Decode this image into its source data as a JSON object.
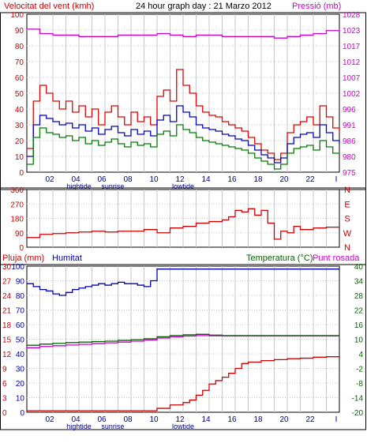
{
  "header": {
    "left_title": "Velocitat del vent (kmh)",
    "center_title": "24 hour graph day : 21 Marzo 2012",
    "right_title": "Pressió (mb)"
  },
  "panel3_header": {
    "rain_label": "Pluja (mm)",
    "humidity_label": "Humitat",
    "temperature_label": "Temperatura (°C)",
    "dewpoint_label": "Punt rosada"
  },
  "x_ticks": [
    "02",
    "04",
    "06",
    "08",
    "10",
    "12",
    "14",
    "16",
    "18",
    "20",
    "22",
    "I"
  ],
  "x_annotations": [
    "hightide",
    "sunrise",
    "lowtide"
  ],
  "colors": {
    "wind_gust": "#e00000",
    "wind_avg": "#0000cc",
    "wind_min": "#007a00",
    "pressure": "#cc00cc",
    "direction": "#cc0000",
    "humidity": "#0000aa",
    "temperature": "#006600",
    "dewpoint": "#cc00cc",
    "rain": "#cc0000"
  },
  "chart_data": [
    {
      "type": "line",
      "xlabel": "",
      "ylabel": "Velocitat del vent (kmh)",
      "y2label": "Pressió (mb)",
      "x_range": [
        0,
        24
      ],
      "ylim": [
        0,
        100
      ],
      "y_ticks": [
        "0",
        "10",
        "20",
        "30",
        "40",
        "50",
        "60",
        "70",
        "80",
        "90",
        "100"
      ],
      "y2lim": [
        975,
        1028
      ],
      "y2_ticks": [
        "975",
        "980",
        "986",
        "991",
        "996",
        "1002",
        "1007",
        "1012",
        "1017",
        "1023",
        "1028"
      ],
      "grid": true,
      "series": [
        {
          "color": "#e00000",
          "x": [
            0,
            0.5,
            1,
            1.5,
            2,
            2.5,
            3,
            3.5,
            4,
            4.5,
            5,
            5.5,
            6,
            6.5,
            7,
            7.5,
            8,
            8.5,
            9,
            9.5,
            10,
            10.5,
            11,
            11.5,
            12,
            12.5,
            13,
            13.5,
            14,
            14.5,
            15,
            15.5,
            16,
            16.5,
            17,
            17.5,
            18,
            18.5,
            19,
            19.5,
            20,
            20.5,
            21,
            21.5,
            22,
            22.5,
            23,
            23.5,
            24
          ],
          "y": [
            15,
            45,
            55,
            50,
            45,
            40,
            45,
            38,
            42,
            35,
            40,
            30,
            38,
            42,
            35,
            30,
            38,
            32,
            35,
            30,
            48,
            52,
            45,
            65,
            55,
            50,
            42,
            38,
            36,
            35,
            32,
            30,
            28,
            26,
            22,
            18,
            14,
            12,
            8,
            12,
            25,
            30,
            32,
            35,
            30,
            42,
            35,
            28,
            25
          ]
        },
        {
          "color": "#0000cc",
          "x": [
            0,
            0.5,
            1,
            1.5,
            2,
            2.5,
            3,
            3.5,
            4,
            4.5,
            5,
            5.5,
            6,
            6.5,
            7,
            7.5,
            8,
            8.5,
            9,
            9.5,
            10,
            10.5,
            11,
            11.5,
            12,
            12.5,
            13,
            13.5,
            14,
            14.5,
            15,
            15.5,
            16,
            16.5,
            17,
            17.5,
            18,
            18.5,
            19,
            19.5,
            20,
            20.5,
            21,
            21.5,
            22,
            22.5,
            23,
            23.5,
            24
          ],
          "y": [
            10,
            30,
            36,
            34,
            32,
            30,
            31,
            28,
            30,
            26,
            28,
            24,
            27,
            29,
            25,
            23,
            27,
            24,
            26,
            23,
            33,
            36,
            32,
            42,
            38,
            35,
            30,
            28,
            27,
            26,
            24,
            23,
            21,
            20,
            17,
            14,
            11,
            9,
            6,
            9,
            18,
            22,
            24,
            25,
            22,
            30,
            25,
            20,
            18
          ]
        },
        {
          "color": "#007a00",
          "x": [
            0,
            0.5,
            1,
            1.5,
            2,
            2.5,
            3,
            3.5,
            4,
            4.5,
            5,
            5.5,
            6,
            6.5,
            7,
            7.5,
            8,
            8.5,
            9,
            9.5,
            10,
            10.5,
            11,
            11.5,
            12,
            12.5,
            13,
            13.5,
            14,
            14.5,
            15,
            15.5,
            16,
            16.5,
            17,
            17.5,
            18,
            18.5,
            19,
            19.5,
            20,
            20.5,
            21,
            21.5,
            22,
            22.5,
            23,
            23.5,
            24
          ],
          "y": [
            5,
            22,
            28,
            25,
            24,
            22,
            23,
            20,
            22,
            18,
            20,
            17,
            19,
            21,
            18,
            16,
            19,
            17,
            18,
            16,
            24,
            26,
            23,
            30,
            27,
            25,
            22,
            20,
            19,
            18,
            17,
            16,
            15,
            14,
            12,
            9,
            7,
            5,
            2,
            5,
            12,
            15,
            16,
            17,
            14,
            20,
            16,
            12,
            11
          ]
        },
        {
          "color": "#cc00cc",
          "axis": "y2",
          "x": [
            0,
            1,
            2,
            3,
            4,
            5,
            6,
            7,
            8,
            9,
            10,
            11,
            12,
            13,
            14,
            15,
            16,
            17,
            18,
            19,
            20,
            21,
            22,
            23,
            24
          ],
          "y": [
            1023,
            1021.5,
            1021,
            1021,
            1020.5,
            1020.5,
            1020.5,
            1021,
            1021,
            1021,
            1021.5,
            1021,
            1020.5,
            1021,
            1021,
            1020.5,
            1020.5,
            1020.5,
            1020.5,
            1020,
            1020.5,
            1021,
            1021.5,
            1022.5,
            1023
          ]
        }
      ]
    },
    {
      "type": "line",
      "ylabel": "",
      "x_range": [
        0,
        24
      ],
      "ylim": [
        0,
        360
      ],
      "y_ticks": [
        "0",
        "90",
        "180",
        "270",
        "360"
      ],
      "y2_ticks": [
        "N",
        "W",
        "S",
        "E",
        "N"
      ],
      "grid": true,
      "series": [
        {
          "color": "#cc0000",
          "x": [
            0,
            1,
            2,
            3,
            4,
            5,
            6,
            7,
            8,
            9,
            10,
            11,
            12,
            13,
            14,
            15,
            15.5,
            16,
            16.5,
            17,
            17.5,
            18,
            18.5,
            19,
            19.5,
            20,
            20.5,
            21,
            22,
            23,
            24
          ],
          "y": [
            60,
            80,
            85,
            90,
            95,
            100,
            95,
            100,
            100,
            110,
            90,
            120,
            130,
            150,
            160,
            170,
            190,
            230,
            220,
            240,
            200,
            230,
            150,
            50,
            100,
            90,
            130,
            110,
            120,
            125,
            130
          ]
        }
      ]
    },
    {
      "type": "line",
      "x_range": [
        0,
        24
      ],
      "ylim_left": [
        0,
        100
      ],
      "left_ticks_rain": [
        "0",
        "3",
        "6",
        "9",
        "12",
        "15",
        "18",
        "21",
        "24",
        "27",
        "30"
      ],
      "left_ticks_humidity": [
        "0",
        "10",
        "20",
        "30",
        "40",
        "50",
        "60",
        "70",
        "80",
        "90",
        "100"
      ],
      "ylim_right": [
        -20,
        40
      ],
      "right_ticks": [
        "-20",
        "-14",
        "-8",
        "-2",
        "4",
        "10",
        "16",
        "22",
        "28",
        "34",
        "40"
      ],
      "grid": true,
      "series": [
        {
          "color": "#0000aa",
          "x": [
            0,
            0.5,
            1,
            1.5,
            2,
            2.5,
            3,
            3.5,
            4,
            4.5,
            5,
            5.5,
            6,
            6.5,
            7,
            7.5,
            8,
            8.5,
            9,
            9.5,
            10,
            11,
            12,
            13,
            14,
            15,
            16,
            17,
            18,
            19,
            20,
            21,
            22,
            23,
            24
          ],
          "y": [
            88,
            86,
            84,
            83,
            81,
            80,
            82,
            84,
            85,
            86,
            87,
            88,
            87,
            88,
            89,
            88,
            88,
            87,
            86,
            90,
            98,
            98,
            98,
            98,
            98,
            98,
            98,
            98,
            98,
            98,
            98,
            98,
            98,
            98,
            98
          ]
        },
        {
          "color": "#006600",
          "x": [
            0,
            1,
            2,
            3,
            4,
            5,
            6,
            7,
            8,
            9,
            10,
            11,
            12,
            13,
            14,
            15,
            16,
            17,
            18,
            19,
            20,
            21,
            22,
            23,
            24
          ],
          "y": [
            7.5,
            8,
            8.3,
            8.6,
            8.8,
            9,
            9.2,
            9.5,
            9.8,
            10.2,
            11,
            11.5,
            11.8,
            12,
            11.7,
            11.5,
            11.5,
            11.5,
            11.5,
            11.5,
            11.5,
            11.5,
            11.5,
            11.5,
            11.5
          ]
        },
        {
          "color": "#cc00cc",
          "x": [
            0,
            1,
            2,
            3,
            4,
            5,
            6,
            7,
            8,
            9,
            10,
            11,
            12,
            13,
            14,
            15,
            16,
            17,
            18,
            19,
            20,
            21,
            22,
            23,
            24
          ],
          "y": [
            6.5,
            7,
            7.3,
            7.6,
            7.9,
            8.2,
            8.5,
            8.8,
            9.2,
            9.7,
            10.5,
            11,
            11.3,
            11.5,
            11.4,
            11.3,
            11.3,
            11.3,
            11.3,
            11.3,
            11.3,
            11.3,
            11.3,
            11.3,
            11.3
          ]
        },
        {
          "color": "#cc0000",
          "x": [
            0,
            9.9,
            10,
            11,
            12,
            12.5,
            13,
            13.5,
            14,
            14.5,
            15,
            15.5,
            16,
            16.5,
            17,
            18,
            19,
            20,
            21,
            22,
            23,
            24
          ],
          "y": [
            0.3,
            0.3,
            0.8,
            1.5,
            2,
            2.5,
            3.5,
            4.5,
            5.8,
            6.5,
            7.2,
            8,
            9,
            10,
            10.3,
            10.6,
            10.8,
            11,
            11.1,
            11.3,
            11.4,
            11.5
          ]
        }
      ]
    }
  ]
}
